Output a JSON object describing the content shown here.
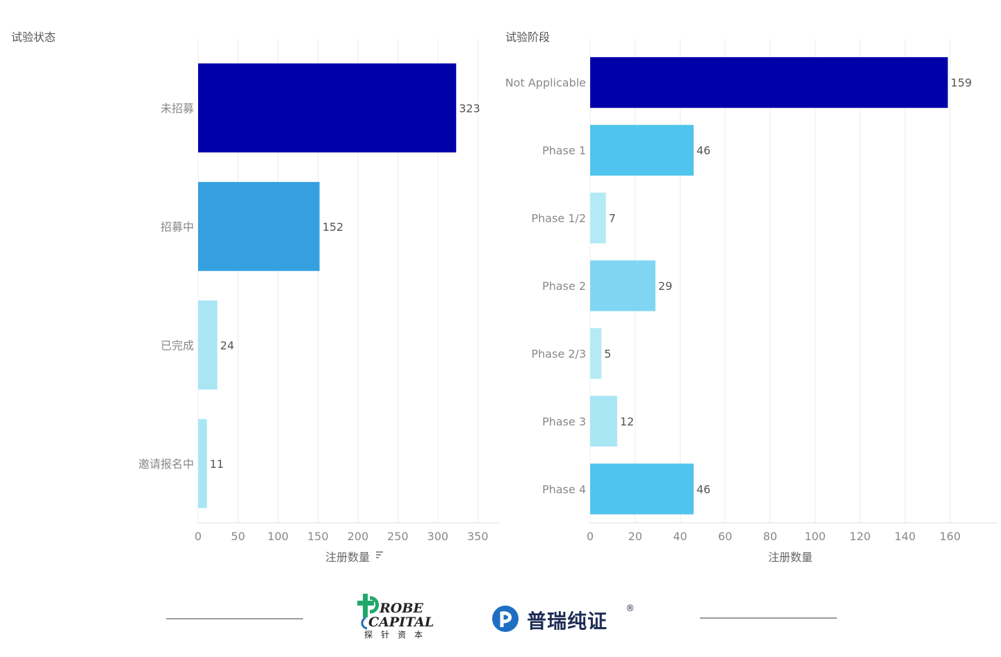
{
  "chart_data": [
    {
      "type": "bar",
      "orientation": "horizontal",
      "title": "试验状态",
      "xlabel": "注册数量",
      "sort_icon": "sort-descending-icon",
      "categories": [
        "未招募",
        "招募中",
        "已完成",
        "邀请报名中"
      ],
      "values": [
        323,
        152,
        24,
        11
      ],
      "data_labels": [
        "323",
        "152",
        "24",
        "11"
      ],
      "colors": [
        "#0000a8",
        "#35a0e0",
        "#a8e6f4",
        "#a8e6f4"
      ],
      "xlim": [
        0,
        375
      ],
      "xticks": [
        0,
        50,
        100,
        150,
        200,
        250,
        300,
        350
      ],
      "xtick_labels": [
        "0",
        "50",
        "100",
        "150",
        "200",
        "250",
        "300",
        "350"
      ],
      "grid": "vertical"
    },
    {
      "type": "bar",
      "orientation": "horizontal",
      "title": "试验阶段",
      "xlabel": "注册数量",
      "categories": [
        "Not Applicable",
        "Phase 1",
        "Phase 1/2",
        "Phase 2",
        "Phase 2/3",
        "Phase 3",
        "Phase 4"
      ],
      "values": [
        159,
        46,
        7,
        29,
        5,
        12,
        46
      ],
      "data_labels": [
        "159",
        "46",
        "7",
        "29",
        "5",
        "12",
        "46"
      ],
      "colors": [
        "#0000a8",
        "#50c4ec",
        "#b4eaf6",
        "#80d6f2",
        "#b4eaf6",
        "#a8e6f4",
        "#50c4ec"
      ],
      "xlim": [
        0,
        178
      ],
      "xticks": [
        0,
        20,
        40,
        60,
        80,
        100,
        120,
        140,
        160
      ],
      "xtick_labels": [
        "0",
        "20",
        "40",
        "60",
        "80",
        "100",
        "120",
        "140",
        "160"
      ],
      "grid": "vertical"
    }
  ],
  "footer": {
    "probe_logo": {
      "line1": "ROBE",
      "line2": "CAPITAL",
      "line3": "探针资本",
      "icon": "probe-capital-logo-icon",
      "colors": {
        "green": "#1fa86a",
        "blue": "#2a6fb5"
      }
    },
    "prc_logo": {
      "text": "普瑞纯证",
      "registered": "®",
      "icon": "prc-logo-icon",
      "color": "#1e6fc4"
    }
  }
}
